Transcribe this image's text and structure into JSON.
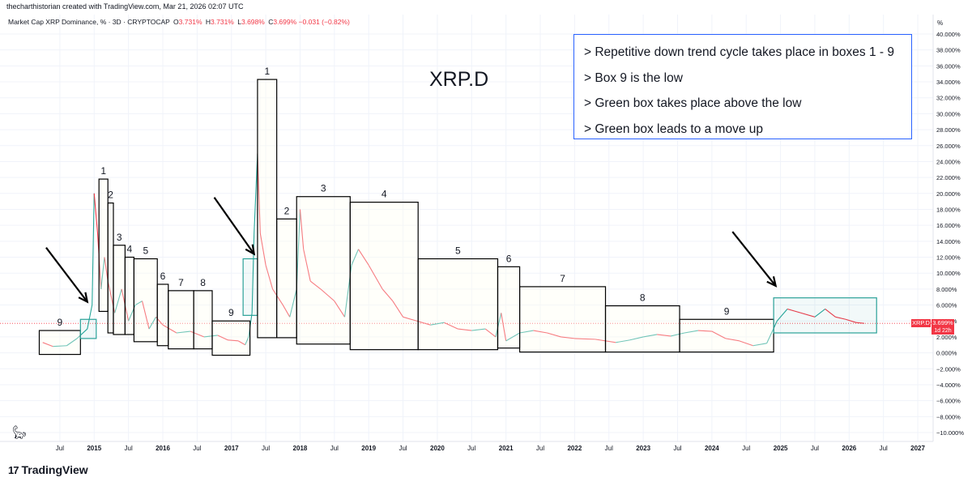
{
  "header": {
    "credit": "thecharthistorian created with TradingView.com, Mar 21, 2026 02:07 UTC",
    "symbol": "Market Cap XRP Dominance, % · 3D · CRYPTOCAP",
    "ohlc": [
      {
        "label": "O",
        "value": "3.731%"
      },
      {
        "label": "H",
        "value": "3.731%"
      },
      {
        "label": "L",
        "value": "3.698%"
      },
      {
        "label": "C",
        "value": "3.699%"
      }
    ],
    "change": "−0.031 (−0.82%)"
  },
  "axis_unit": "%",
  "title": "XRP.D",
  "notes": [
    "> Repetitive down trend cycle takes place in boxes 1 - 9",
    "> Box 9 is the low",
    "> Green box takes place above the low",
    "> Green box leads to a move up"
  ],
  "badge": {
    "symbol": "XRP.D",
    "price": "3.699%",
    "countdown": "1d 22h"
  },
  "brand": {
    "logo": "17",
    "name": "TradingView"
  },
  "colors": {
    "up": "#26a69a",
    "down": "#f23645",
    "box": "#000000",
    "green_box": "#2aa198",
    "note_border": "#2962ff",
    "last_line": "#f23645"
  },
  "chart_data": {
    "type": "line",
    "ylabel": "",
    "ylim": [
      -10,
      40
    ],
    "y_ticks": [
      "40.000%",
      "38.000%",
      "36.000%",
      "34.000%",
      "32.000%",
      "30.000%",
      "28.000%",
      "26.000%",
      "24.000%",
      "22.000%",
      "20.000%",
      "18.000%",
      "16.000%",
      "14.000%",
      "12.000%",
      "10.000%",
      "8.000%",
      "6.000%",
      "4.000%",
      "2.000%",
      "0.000%",
      "−2.000%",
      "−4.000%",
      "−6.000%",
      "−8.000%",
      "−10.000%"
    ],
    "y_tick_values": [
      40,
      38,
      36,
      34,
      32,
      30,
      28,
      26,
      24,
      22,
      20,
      18,
      16,
      14,
      12,
      10,
      8,
      6,
      4,
      2,
      0,
      -2,
      -4,
      -6,
      -8,
      -10
    ],
    "xlim": [
      2014.1,
      2027.2
    ],
    "x_ticks": [
      {
        "label": "Jul",
        "t": 2014.5
      },
      {
        "label": "2015",
        "t": 2015.0
      },
      {
        "label": "Jul",
        "t": 2015.5
      },
      {
        "label": "2016",
        "t": 2016.0
      },
      {
        "label": "Jul",
        "t": 2016.5
      },
      {
        "label": "2017",
        "t": 2017.0
      },
      {
        "label": "Jul",
        "t": 2017.5
      },
      {
        "label": "2018",
        "t": 2018.0
      },
      {
        "label": "Jul",
        "t": 2018.5
      },
      {
        "label": "2019",
        "t": 2019.0
      },
      {
        "label": "Jul",
        "t": 2019.5
      },
      {
        "label": "2020",
        "t": 2020.0
      },
      {
        "label": "Jul",
        "t": 2020.5
      },
      {
        "label": "2021",
        "t": 2021.0
      },
      {
        "label": "Jul",
        "t": 2021.5
      },
      {
        "label": "2022",
        "t": 2022.0
      },
      {
        "label": "Jul",
        "t": 2022.5
      },
      {
        "label": "2023",
        "t": 2023.0
      },
      {
        "label": "Jul",
        "t": 2023.5
      },
      {
        "label": "2024",
        "t": 2024.0
      },
      {
        "label": "Jul",
        "t": 2024.5
      },
      {
        "label": "2025",
        "t": 2025.0
      },
      {
        "label": "Jul",
        "t": 2025.5
      },
      {
        "label": "2026",
        "t": 2026.0
      },
      {
        "label": "Jul",
        "t": 2026.5
      },
      {
        "label": "2027",
        "t": 2027.0
      }
    ],
    "last_value": 3.699,
    "series": [
      {
        "points": [
          [
            2014.25,
            1.3
          ],
          [
            2014.4,
            0.8
          ],
          [
            2014.6,
            0.9
          ],
          [
            2014.75,
            1.8
          ],
          [
            2014.9,
            3.0
          ],
          [
            2014.97,
            6.0
          ],
          [
            2015.0,
            20.0
          ],
          [
            2015.05,
            15.0
          ],
          [
            2015.1,
            8.0
          ],
          [
            2015.15,
            12.0
          ],
          [
            2015.2,
            9.0
          ],
          [
            2015.3,
            5.0
          ],
          [
            2015.4,
            8.0
          ],
          [
            2015.5,
            4.0
          ],
          [
            2015.6,
            6.0
          ],
          [
            2015.7,
            6.5
          ],
          [
            2015.8,
            3.0
          ],
          [
            2015.9,
            4.5
          ],
          [
            2016.0,
            3.5
          ],
          [
            2016.2,
            2.5
          ],
          [
            2016.4,
            2.7
          ],
          [
            2016.6,
            2.0
          ],
          [
            2016.8,
            2.2
          ],
          [
            2016.95,
            1.6
          ],
          [
            2017.1,
            1.5
          ],
          [
            2017.2,
            1.0
          ],
          [
            2017.25,
            2.0
          ],
          [
            2017.3,
            5.0
          ],
          [
            2017.33,
            15.0
          ],
          [
            2017.38,
            25.0
          ],
          [
            2017.42,
            15.0
          ],
          [
            2017.5,
            11.0
          ],
          [
            2017.6,
            8.0
          ],
          [
            2017.75,
            6.0
          ],
          [
            2017.85,
            4.5
          ],
          [
            2017.95,
            8.0
          ],
          [
            2018.0,
            18.0
          ],
          [
            2018.05,
            13.0
          ],
          [
            2018.15,
            9.0
          ],
          [
            2018.3,
            8.0
          ],
          [
            2018.5,
            6.5
          ],
          [
            2018.65,
            4.5
          ],
          [
            2018.75,
            11.0
          ],
          [
            2018.85,
            13.0
          ],
          [
            2019.0,
            11.0
          ],
          [
            2019.2,
            8.0
          ],
          [
            2019.35,
            6.5
          ],
          [
            2019.5,
            4.5
          ],
          [
            2019.7,
            4.0
          ],
          [
            2019.9,
            3.5
          ],
          [
            2020.1,
            3.8
          ],
          [
            2020.3,
            3.0
          ],
          [
            2020.5,
            2.8
          ],
          [
            2020.7,
            3.0
          ],
          [
            2020.85,
            2.0
          ],
          [
            2020.93,
            5.0
          ],
          [
            2021.0,
            1.5
          ],
          [
            2021.2,
            2.5
          ],
          [
            2021.4,
            2.8
          ],
          [
            2021.6,
            2.5
          ],
          [
            2021.8,
            2.0
          ],
          [
            2022.0,
            1.8
          ],
          [
            2022.3,
            1.7
          ],
          [
            2022.6,
            1.3
          ],
          [
            2022.8,
            1.6
          ],
          [
            2023.0,
            2.0
          ],
          [
            2023.2,
            2.3
          ],
          [
            2023.4,
            2.1
          ],
          [
            2023.6,
            2.5
          ],
          [
            2023.8,
            2.8
          ],
          [
            2024.0,
            2.7
          ],
          [
            2024.2,
            1.8
          ],
          [
            2024.4,
            1.5
          ],
          [
            2024.6,
            0.9
          ],
          [
            2024.8,
            1.2
          ],
          [
            2024.95,
            4.0
          ],
          [
            2025.1,
            5.5
          ],
          [
            2025.3,
            5.0
          ],
          [
            2025.5,
            4.5
          ],
          [
            2025.65,
            5.5
          ],
          [
            2025.8,
            4.5
          ],
          [
            2025.95,
            4.2
          ],
          [
            2026.1,
            3.8
          ],
          [
            2026.22,
            3.7
          ]
        ]
      }
    ],
    "boxes": [
      {
        "label": "9",
        "t0": 2014.2,
        "t1": 2014.8,
        "y0": -0.2,
        "y1": 2.8,
        "green": false
      },
      {
        "label": "",
        "t0": 2014.8,
        "t1": 2015.03,
        "y0": 1.8,
        "y1": 4.2,
        "green": true
      },
      {
        "label": "1",
        "t0": 2015.07,
        "t1": 2015.2,
        "y0": 5.2,
        "y1": 21.8,
        "green": false
      },
      {
        "label": "2",
        "t0": 2015.2,
        "t1": 2015.28,
        "y0": 2.5,
        "y1": 18.8,
        "green": false
      },
      {
        "label": "3",
        "t0": 2015.28,
        "t1": 2015.45,
        "y0": 2.3,
        "y1": 13.5,
        "green": false
      },
      {
        "label": "4",
        "t0": 2015.45,
        "t1": 2015.58,
        "y0": 2.3,
        "y1": 12.0,
        "green": false
      },
      {
        "label": "5",
        "t0": 2015.58,
        "t1": 2015.92,
        "y0": 1.4,
        "y1": 11.8,
        "green": false
      },
      {
        "label": "6",
        "t0": 2015.92,
        "t1": 2016.08,
        "y0": 0.9,
        "y1": 8.6,
        "green": false
      },
      {
        "label": "7",
        "t0": 2016.08,
        "t1": 2016.45,
        "y0": 0.5,
        "y1": 7.8,
        "green": false
      },
      {
        "label": "8",
        "t0": 2016.45,
        "t1": 2016.72,
        "y0": 0.5,
        "y1": 7.8,
        "green": false
      },
      {
        "label": "9",
        "t0": 2016.72,
        "t1": 2017.27,
        "y0": -0.3,
        "y1": 4.0,
        "green": false
      },
      {
        "label": "",
        "t0": 2017.17,
        "t1": 2017.38,
        "y0": 4.7,
        "y1": 11.8,
        "green": true
      },
      {
        "label": "1",
        "t0": 2017.38,
        "t1": 2017.66,
        "y0": 1.9,
        "y1": 34.3,
        "green": false
      },
      {
        "label": "2",
        "t0": 2017.66,
        "t1": 2017.95,
        "y0": 1.9,
        "y1": 16.8,
        "green": false
      },
      {
        "label": "3",
        "t0": 2017.95,
        "t1": 2018.73,
        "y0": 1.1,
        "y1": 19.6,
        "green": false
      },
      {
        "label": "4",
        "t0": 2018.73,
        "t1": 2019.72,
        "y0": 0.4,
        "y1": 18.9,
        "green": false
      },
      {
        "label": "5",
        "t0": 2019.72,
        "t1": 2020.88,
        "y0": 0.4,
        "y1": 11.8,
        "green": false
      },
      {
        "label": "6",
        "t0": 2020.88,
        "t1": 2021.2,
        "y0": 0.6,
        "y1": 10.8,
        "green": false
      },
      {
        "label": "7",
        "t0": 2021.2,
        "t1": 2022.45,
        "y0": 0.1,
        "y1": 8.3,
        "green": false
      },
      {
        "label": "8",
        "t0": 2022.45,
        "t1": 2023.53,
        "y0": 0.1,
        "y1": 5.9,
        "green": false
      },
      {
        "label": "9",
        "t0": 2023.53,
        "t1": 2024.9,
        "y0": 0.1,
        "y1": 4.2,
        "green": false
      },
      {
        "label": "",
        "t0": 2024.9,
        "t1": 2026.4,
        "y0": 2.5,
        "y1": 6.9,
        "green": true
      }
    ],
    "arrows": [
      {
        "from": [
          2014.3,
          13.2
        ],
        "to": [
          2014.9,
          6.4
        ]
      },
      {
        "from": [
          2016.75,
          19.5
        ],
        "to": [
          2017.33,
          12.4
        ]
      },
      {
        "from": [
          2024.3,
          15.2
        ],
        "to": [
          2024.93,
          8.4
        ]
      }
    ]
  }
}
